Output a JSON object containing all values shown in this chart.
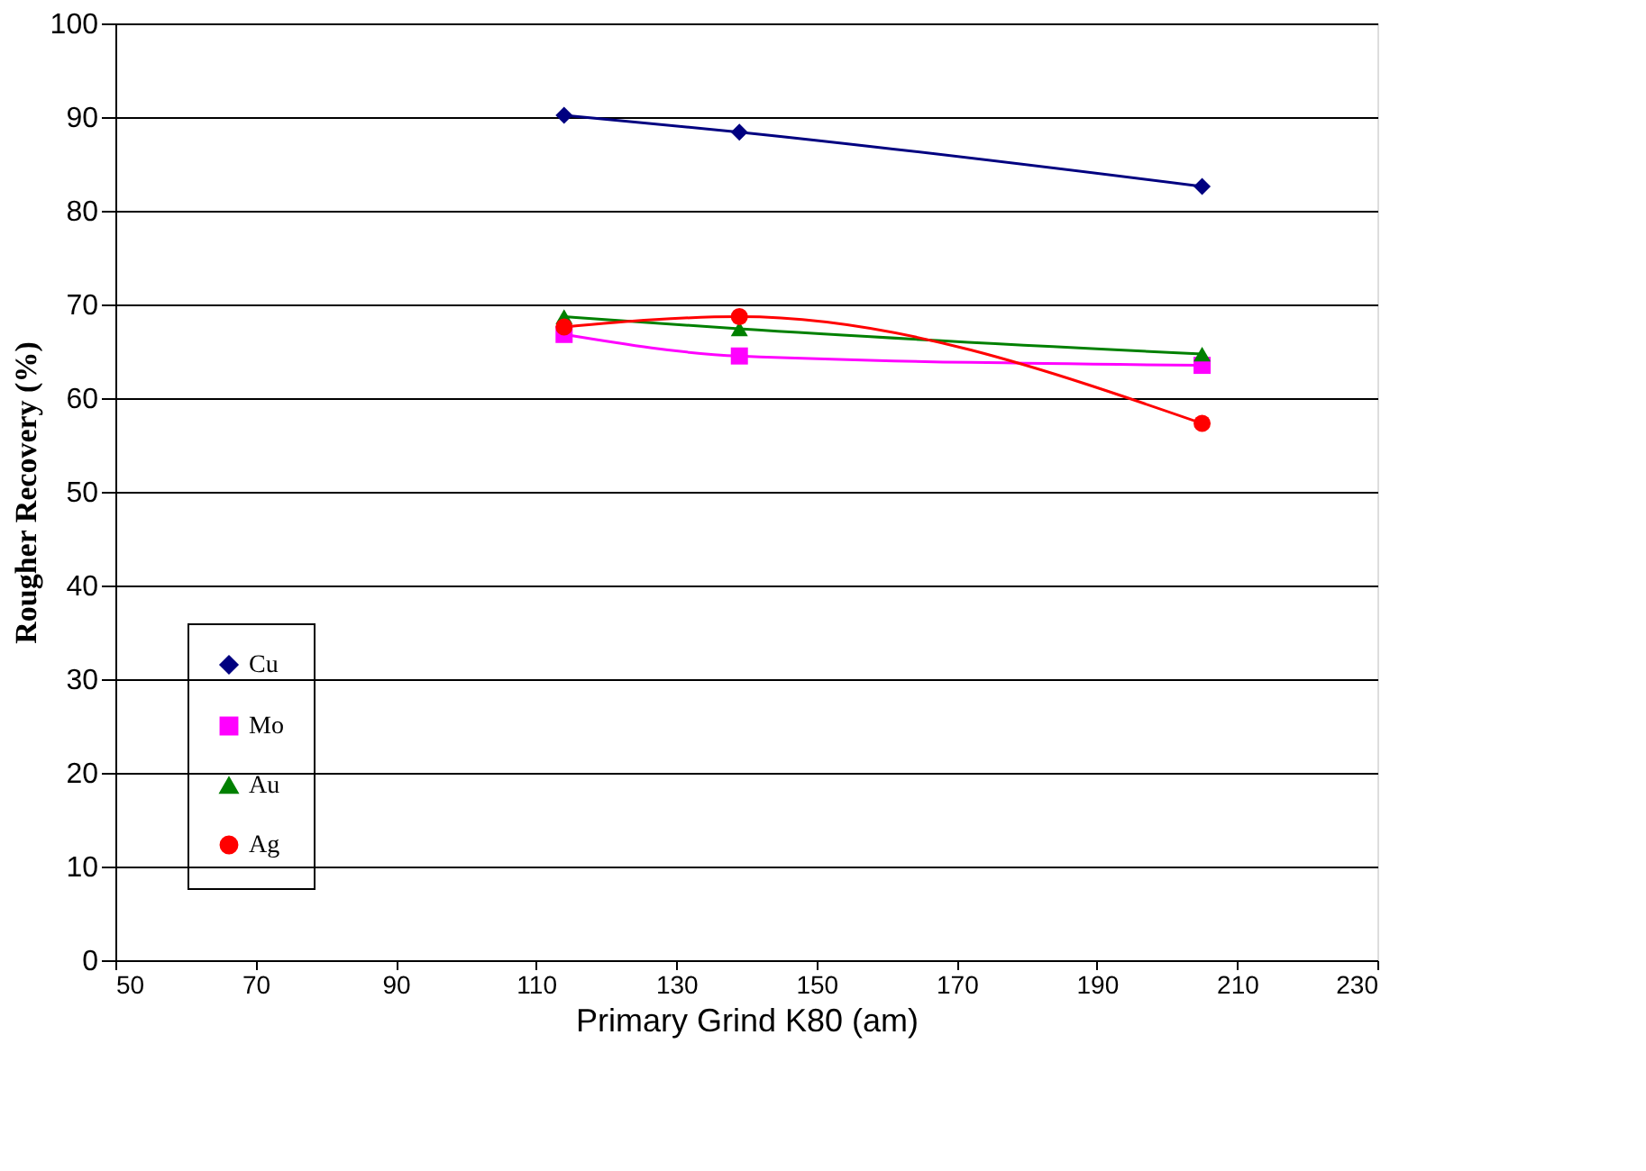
{
  "chart_data": {
    "type": "line",
    "xlabel": "Primary Grind K80 (am)",
    "ylabel": "Rougher Recovery (%)",
    "xlim": [
      50,
      230
    ],
    "xticks": [
      50,
      70,
      90,
      110,
      130,
      150,
      170,
      190,
      210,
      230
    ],
    "ylim": [
      0,
      100
    ],
    "yticks": [
      0,
      10,
      20,
      30,
      40,
      50,
      60,
      70,
      80,
      90,
      100
    ],
    "grid": "y",
    "legend": "bottom left",
    "series": [
      {
        "name": "Cu",
        "color": "#000080",
        "marker": "diamond",
        "x": [
          114,
          139,
          205
        ],
        "values": [
          90.2,
          88.4,
          82.6
        ]
      },
      {
        "name": "Mo",
        "color": "#ff00ff",
        "marker": "square",
        "x": [
          114,
          139,
          205
        ],
        "values": [
          66.8,
          64.5,
          63.5
        ]
      },
      {
        "name": "Au",
        "color": "#008000",
        "marker": "triangle",
        "x": [
          114,
          139,
          205
        ],
        "values": [
          68.7,
          67.4,
          64.7
        ]
      },
      {
        "name": "Ag",
        "color": "#ff0000",
        "marker": "circle",
        "x": [
          114,
          139,
          205
        ],
        "values": [
          67.6,
          68.7,
          57.3
        ]
      }
    ]
  }
}
